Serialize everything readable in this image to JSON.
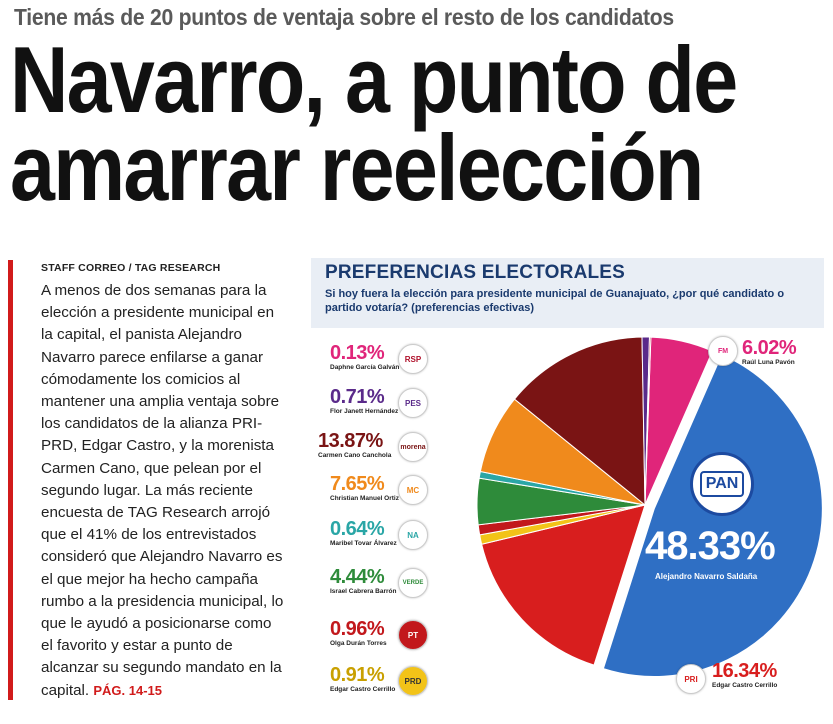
{
  "article": {
    "kicker": "Tiene más de 20 puntos de ventaja sobre el resto de los candidatos",
    "headline_line1": "Navarro, a punto de",
    "headline_line2": "amarrar reelección",
    "byline_staff": "STAFF CORREO",
    "byline_sep": " / ",
    "byline_source": "TAG RESEARCH",
    "body": "A menos de dos semanas para la elección a presidente municipal en la capital, el panista Alejandro Navarro parece enfilarse a ganar cómodamente los comicios al mantener una amplia ventaja sobre los candidatos de la alianza PRI-PRD, Edgar Castro, y la morenista Carmen Cano, que pelean por el segundo lugar. La más reciente encuesta de TAG Research arrojó que el 41% de los entrevistados consideró que Alejandro Navarro es el que mejor ha hecho campaña rumbo a la presidencia municipal, lo que le ayudó a posicionarse como el favorito y estar a punto de alcanzar su segundo mandato en la capital.",
    "page_ref": "PÁG. 14-15"
  },
  "panel": {
    "title": "PREFERENCIAS ELECTORALES",
    "subtitle": "Si hoy fuera la elección para presidente municipal de Guanajuato, ¿por qué candidato o partido votaría? (preferencias efectivas)"
  },
  "chart_data": {
    "type": "pie",
    "title": "PREFERENCIAS ELECTORALES",
    "series": [
      {
        "label": "6.02%",
        "name": "Raúl Luna Pavón",
        "party_logo": "fuerza-mexico-logo",
        "value": 6.02,
        "color": "#e0257a"
      },
      {
        "label": "48.33%",
        "name": "Alejandro Navarro Saldaña",
        "party_logo": "pan-logo",
        "value": 48.33,
        "color": "#2f6fc4"
      },
      {
        "label": "16.34%",
        "name": "Edgar Castro Cerrillo",
        "party_logo": "pri-logo",
        "value": 16.34,
        "color": "#d81e1e"
      },
      {
        "label": "0.91%",
        "name": "Edgar Castro Cerrillo",
        "party_logo": "prd-logo",
        "value": 0.91,
        "color": "#f2c318"
      },
      {
        "label": "0.96%",
        "name": "Olga Durán Torres",
        "party_logo": "pt-logo",
        "value": 0.96,
        "color": "#c2181c"
      },
      {
        "label": "4.44%",
        "name": "Israel Cabrera Barrón",
        "party_logo": "verde-logo",
        "value": 4.44,
        "color": "#2e8b3a"
      },
      {
        "label": "0.64%",
        "name": "Maribel Tovar Álvarez",
        "party_logo": "nueva-alianza-logo",
        "value": 0.64,
        "color": "#2aa6a6"
      },
      {
        "label": "7.65%",
        "name": "Christian Manuel Ortiz",
        "party_logo": "movimiento-ciudadano-logo",
        "value": 7.65,
        "color": "#f08a1c"
      },
      {
        "label": "13.87%",
        "name": "Carmen Cano Canchola",
        "party_logo": "morena-logo",
        "value": 13.87,
        "color": "#7a1414"
      },
      {
        "label": "0.71%",
        "name": "Flor Janett Hernández",
        "party_logo": "pes-logo",
        "value": 0.71,
        "color": "#5a2a8a"
      },
      {
        "label": "0.13%",
        "name": "Daphne García Galván",
        "party_logo": "rsp-logo",
        "value": 0.13,
        "color": "#b0102a"
      }
    ]
  },
  "logos": {
    "rsp": "RSP",
    "pes": "PES",
    "morena": "morena",
    "mc": "MC",
    "na": "NA",
    "verde": "VERDE",
    "pt": "PT",
    "prd": "PRD",
    "pri": "PRI",
    "fm": "FM",
    "pan": "PAN"
  }
}
